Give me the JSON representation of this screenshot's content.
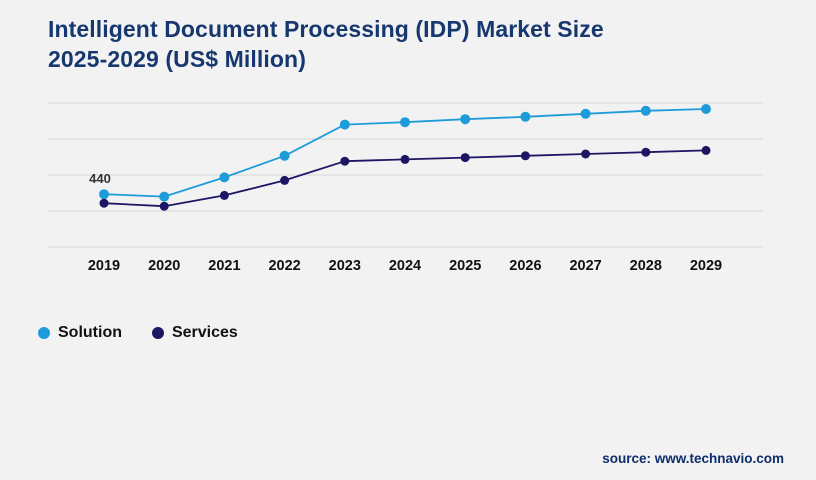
{
  "header": {
    "title_line1": "Intelligent Document Processing (IDP) Market Size",
    "title_line2": "2025-2029 (US$ Million)"
  },
  "footer": {
    "source_text": "source: www.technavio.com"
  },
  "colors": {
    "background": "#f2f2f3",
    "title": "#16386e",
    "gridline": "#d7d7d7",
    "axis_label": "#111111",
    "annotation": "#333333",
    "solution": "#1e9cd9",
    "services": "#1d1665"
  },
  "chart_data": {
    "type": "line",
    "title": "Intelligent Document Processing (IDP) Market Size 2025-2029 (US$ Million)",
    "xlabel": "",
    "ylabel": "",
    "categories": [
      "2019",
      "2020",
      "2021",
      "2022",
      "2023",
      "2024",
      "2025",
      "2026",
      "2027",
      "2028",
      "2029"
    ],
    "series": [
      {
        "name": "Solution",
        "color": "#1e9cd9",
        "values": [
          440,
          420,
          580,
          760,
          1020,
          1040,
          1065,
          1085,
          1110,
          1135,
          1150
        ]
      },
      {
        "name": "Services",
        "color": "#1d1665",
        "values": [
          365,
          340,
          430,
          555,
          715,
          730,
          745,
          760,
          775,
          790,
          805
        ]
      }
    ],
    "ylim": [
      0,
      1200
    ],
    "grid": true,
    "legend_position": "bottom-left",
    "annotations": [
      {
        "text": "440",
        "series": "Solution",
        "category": "2019"
      }
    ]
  }
}
